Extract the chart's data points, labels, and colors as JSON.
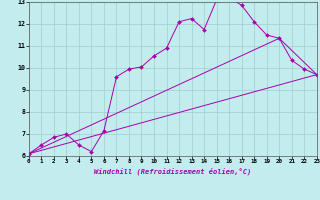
{
  "xlabel": "Windchill (Refroidissement éolien,°C)",
  "xlim": [
    0,
    23
  ],
  "ylim": [
    6,
    13
  ],
  "xticks": [
    0,
    1,
    2,
    3,
    4,
    5,
    6,
    7,
    8,
    9,
    10,
    11,
    12,
    13,
    14,
    15,
    16,
    17,
    18,
    19,
    20,
    21,
    22,
    23
  ],
  "yticks": [
    6,
    7,
    8,
    9,
    10,
    11,
    12,
    13
  ],
  "background_color": "#c2ecee",
  "grid_color": "#9ecfcf",
  "line_color": "#aa00aa",
  "curve1_x": [
    0,
    1,
    2,
    3,
    4,
    5,
    6,
    7,
    8,
    9,
    10,
    11,
    12,
    13,
    14,
    15,
    16,
    17,
    18,
    19,
    20,
    21,
    22,
    23
  ],
  "curve1_y": [
    6.1,
    6.5,
    6.85,
    7.0,
    6.5,
    6.2,
    7.15,
    9.6,
    9.95,
    10.05,
    10.55,
    10.9,
    12.1,
    12.25,
    11.75,
    13.1,
    13.2,
    12.85,
    12.1,
    11.5,
    11.35,
    10.35,
    9.95,
    9.7
  ],
  "curve2_x": [
    0,
    23
  ],
  "curve2_y": [
    6.1,
    9.7
  ],
  "curve3_x": [
    0,
    20,
    23
  ],
  "curve3_y": [
    6.1,
    11.35,
    9.7
  ]
}
